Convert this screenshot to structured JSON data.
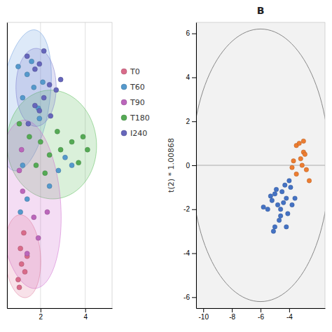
{
  "chart_data": [
    {
      "type": "scatter",
      "xlim": [
        0.5,
        5.2
      ],
      "ylim": [
        -0.5,
        10.5
      ],
      "xticks": [
        2,
        4
      ],
      "tick_labels": "x",
      "grid": true,
      "legend": "right",
      "ellipses": [
        {
          "center": [
            1.3,
            7.5
          ],
          "width": 2.2,
          "height": 5.5,
          "angle": -10,
          "color": "#6699dd"
        },
        {
          "center": [
            2.5,
            5.8
          ],
          "width": 4.0,
          "height": 4.2,
          "angle": 15,
          "color": "#55bb55"
        },
        {
          "center": [
            1.5,
            3.5
          ],
          "width": 2.8,
          "height": 6.5,
          "angle": 5,
          "color": "#cc66cc"
        },
        {
          "center": [
            1.2,
            1.5
          ],
          "width": 1.6,
          "height": 3.2,
          "angle": 5,
          "color": "#dd7799"
        },
        {
          "center": [
            1.8,
            8.0
          ],
          "width": 1.8,
          "height": 3.0,
          "angle": 0,
          "color": "#7777cc"
        }
      ],
      "series": [
        {
          "name": "T0",
          "color": "#d96b8a",
          "x": [
            1.0,
            1.15,
            1.1,
            1.3,
            1.25,
            1.4,
            1.05
          ],
          "values": [
            0.6,
            1.2,
            1.8,
            0.9,
            2.4,
            1.5,
            0.3
          ]
        },
        {
          "name": "T60",
          "color": "#5599cc",
          "x": [
            1.0,
            1.4,
            1.7,
            1.2,
            1.9,
            1.6,
            2.1,
            1.95,
            1.1,
            1.4,
            2.4,
            2.8,
            3.1,
            3.4,
            1.2
          ],
          "values": [
            8.8,
            8.5,
            8.0,
            7.6,
            7.2,
            9.0,
            8.2,
            6.8,
            3.2,
            3.7,
            4.2,
            4.8,
            5.3,
            5.0,
            5.0
          ]
        },
        {
          "name": "T90",
          "color": "#bb66bb",
          "x": [
            1.2,
            1.7,
            1.9,
            1.4,
            2.3,
            1.05,
            1.15
          ],
          "values": [
            4.0,
            3.0,
            2.2,
            1.6,
            3.2,
            4.8,
            5.6
          ]
        },
        {
          "name": "T180",
          "color": "#55aa55",
          "x": [
            1.05,
            1.5,
            2.0,
            2.4,
            2.9,
            3.4,
            2.75,
            3.7,
            4.1,
            3.9,
            1.8,
            2.2
          ],
          "values": [
            6.6,
            6.1,
            5.9,
            5.4,
            5.6,
            5.9,
            6.3,
            5.1,
            5.6,
            6.1,
            5.0,
            4.7
          ]
        },
        {
          "name": "I240",
          "color": "#6666bb",
          "x": [
            1.4,
            1.75,
            1.95,
            2.4,
            2.15,
            2.7,
            2.9,
            2.45,
            1.75,
            2.15,
            1.45,
            1.95
          ],
          "values": [
            9.2,
            8.7,
            8.9,
            8.1,
            7.6,
            7.9,
            8.3,
            6.9,
            7.3,
            9.4,
            6.6,
            7.1
          ]
        }
      ]
    },
    {
      "type": "scatter",
      "title": "B",
      "ylabel": "t(2) * 1.00868",
      "xlim": [
        -10.5,
        -1.5
      ],
      "ylim": [
        -6.5,
        6.5
      ],
      "xticks": [
        -10,
        -8,
        -6,
        -4
      ],
      "yticks": [
        -6,
        -4,
        -2,
        0,
        2,
        4,
        6
      ],
      "hlines": [
        0
      ],
      "ellipse": {
        "center": [
          -6.0,
          0.0
        ],
        "rx": 4.8,
        "ry": 6.2,
        "color": "#888888"
      },
      "series": [
        {
          "color": "#4472c4",
          "x": [
            -4.5,
            -4.2,
            -4.8,
            -5.0,
            -4.6,
            -5.2,
            -4.3,
            -4.9,
            -5.5,
            -3.8,
            -4.1,
            -4.7,
            -5.8,
            -3.6,
            -4.0,
            -5.0,
            -3.9,
            -4.4,
            -5.3,
            -4.6,
            -4.2,
            -5.1
          ],
          "values": [
            -1.2,
            -1.5,
            -1.8,
            -1.3,
            -2.0,
            -1.6,
            -0.9,
            -1.1,
            -2.0,
            -1.8,
            -2.2,
            -2.5,
            -1.9,
            -1.5,
            -0.7,
            -2.8,
            -1.0,
            -1.7,
            -1.4,
            -2.3,
            -2.8,
            -3.0
          ]
        },
        {
          "color": "#ed7d31",
          "x": [
            -3.2,
            -3.0,
            -2.8,
            -3.5,
            -3.1,
            -2.9,
            -3.3,
            -3.7,
            -3.0,
            -3.5,
            -2.6,
            -3.8
          ],
          "values": [
            0.3,
            0.6,
            -0.2,
            0.9,
            0.0,
            0.5,
            1.0,
            0.2,
            1.1,
            -0.4,
            -0.7,
            -0.1
          ]
        }
      ]
    }
  ]
}
